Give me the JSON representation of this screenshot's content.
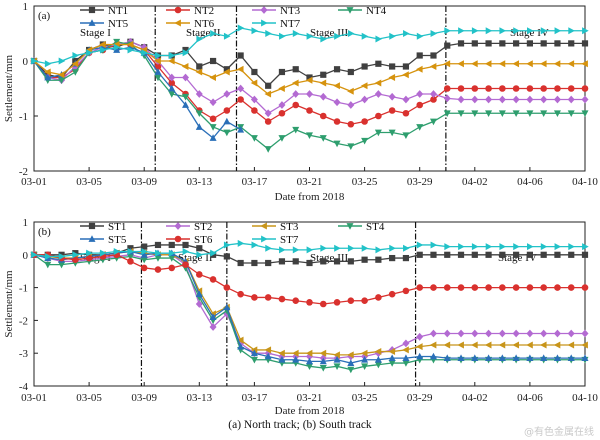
{
  "caption": "(a) North track; (b) South track",
  "watermark": "@有色金属在线",
  "colors": {
    "NT1": "#404040",
    "NT2": "#d9312e",
    "NT3": "#b36ad2",
    "NT4": "#2e9e6e",
    "NT5": "#2a6fb8",
    "NT6": "#d6930e",
    "NT7": "#22c2c8",
    "ST1": "#404040",
    "ST2": "#b36ad2",
    "ST3": "#c8951a",
    "ST4": "#2e9e6e",
    "ST5": "#2a6fb8",
    "ST6": "#d9312e",
    "ST7": "#22c2c8"
  },
  "markers": {
    "NT1": "square",
    "NT2": "circle",
    "NT3": "diamond",
    "NT4": "triangle-down",
    "NT5": "triangle-up",
    "NT6": "triangle-left",
    "NT7": "triangle-right",
    "ST1": "square",
    "ST2": "diamond",
    "ST3": "triangle-left",
    "ST4": "triangle-down",
    "ST5": "triangle-up",
    "ST6": "circle",
    "ST7": "triangle-right"
  },
  "chart_data": [
    {
      "type": "line",
      "panel": "(a)",
      "xlabel": "Date from 2018",
      "ylabel": "Settlement/mm",
      "x_tick_labels": [
        "03-01",
        "03-05",
        "03-09",
        "03-13",
        "03-17",
        "03-21",
        "03-25",
        "03-29",
        "04-02",
        "04-06",
        "04-10"
      ],
      "x_range_days": [
        0,
        40
      ],
      "ylim": [
        -2,
        1
      ],
      "y_ticks": [
        1,
        0,
        -1,
        -2
      ],
      "stage_dividers_day": [
        8.8,
        14.7,
        29.9
      ],
      "stages": [
        "Stage I",
        "Stage II",
        "Stage III",
        "Stage IV"
      ],
      "legend": [
        "NT1",
        "NT2",
        "NT3",
        "NT4",
        "NT5",
        "NT6",
        "NT7"
      ],
      "x_day": [
        0,
        1,
        2,
        3,
        4,
        5,
        6,
        7,
        8,
        9,
        10,
        11,
        12,
        13,
        14,
        15,
        16,
        17,
        18,
        19,
        20,
        21,
        22,
        23,
        24,
        25,
        26,
        27,
        28,
        29,
        30,
        31,
        32,
        33,
        34,
        35,
        36,
        37,
        38,
        39,
        40
      ],
      "series": [
        {
          "name": "NT1",
          "values": [
            0,
            -0.25,
            -0.3,
            0,
            0.2,
            0.3,
            0.25,
            0.35,
            0.25,
            0.1,
            0.1,
            0.2,
            -0.1,
            0,
            -0.15,
            0.1,
            -0.2,
            -0.45,
            -0.2,
            -0.15,
            -0.3,
            -0.25,
            -0.15,
            -0.2,
            -0.1,
            -0.05,
            -0.1,
            -0.1,
            0.1,
            0.1,
            0.28,
            0.32,
            0.32,
            0.32,
            0.32,
            0.32,
            0.32,
            0.32,
            0.32,
            0.32,
            0.32
          ]
        },
        {
          "name": "NT2",
          "values": [
            0,
            -0.3,
            -0.3,
            -0.15,
            0.15,
            0.2,
            0.3,
            0.3,
            0.2,
            -0.1,
            -0.4,
            -0.6,
            -0.9,
            -1.05,
            -0.9,
            -0.7,
            -0.9,
            -1.1,
            -0.95,
            -0.8,
            -0.9,
            -1.0,
            -1.1,
            -1.15,
            -1.1,
            -1.0,
            -0.9,
            -0.95,
            -0.8,
            -0.7,
            -0.5,
            -0.5,
            -0.5,
            -0.5,
            -0.5,
            -0.5,
            -0.5,
            -0.5,
            -0.5,
            -0.5,
            -0.5
          ]
        },
        {
          "name": "NT3",
          "values": [
            0,
            -0.3,
            -0.35,
            -0.1,
            0.15,
            0.25,
            0.3,
            0.35,
            0.25,
            0.0,
            -0.3,
            -0.3,
            -0.6,
            -0.75,
            -0.6,
            -0.5,
            -0.7,
            -0.95,
            -0.8,
            -0.6,
            -0.6,
            -0.65,
            -0.75,
            -0.8,
            -0.7,
            -0.6,
            -0.65,
            -0.7,
            -0.6,
            -0.6,
            -0.68,
            -0.7,
            -0.7,
            -0.7,
            -0.7,
            -0.7,
            -0.7,
            -0.7,
            -0.7,
            -0.7,
            -0.7
          ]
        },
        {
          "name": "NT4",
          "values": [
            0,
            -0.35,
            -0.35,
            -0.2,
            0.15,
            0.2,
            0.35,
            0.3,
            0.1,
            -0.3,
            -0.6,
            -0.65,
            -0.95,
            -1.2,
            -1.3,
            -1.2,
            -1.4,
            -1.6,
            -1.4,
            -1.25,
            -1.35,
            -1.4,
            -1.5,
            -1.55,
            -1.45,
            -1.3,
            -1.3,
            -1.35,
            -1.2,
            -1.1,
            -0.95,
            -0.95,
            -0.95,
            -0.95,
            -0.95,
            -0.95,
            -0.95,
            -0.95,
            -0.95,
            -0.95,
            -0.95
          ]
        },
        {
          "name": "NT5",
          "values": [
            0,
            -0.3,
            -0.25,
            -0.05,
            0.2,
            0.25,
            0.2,
            0.25,
            0.15,
            -0.2,
            -0.5,
            -0.8,
            -1.2,
            -1.4,
            -1.1,
            -1.25
          ]
        },
        {
          "name": "NT6",
          "values": [
            0,
            -0.2,
            -0.25,
            -0.05,
            0.2,
            0.3,
            0.3,
            0.3,
            0.2,
            0.0,
            0.0,
            -0.1,
            -0.2,
            -0.3,
            -0.2,
            -0.15,
            -0.4,
            -0.6,
            -0.5,
            -0.4,
            -0.35,
            -0.4,
            -0.45,
            -0.55,
            -0.45,
            -0.4,
            -0.3,
            -0.25,
            -0.15,
            -0.1,
            -0.05,
            -0.05,
            -0.05,
            -0.05,
            -0.05,
            -0.05,
            -0.05,
            -0.05,
            -0.05,
            -0.05,
            -0.05
          ]
        },
        {
          "name": "NT7",
          "values": [
            0,
            -0.05,
            0,
            0.1,
            0.15,
            0.2,
            0.25,
            0.2,
            0.15,
            0.1,
            0.1,
            0.15,
            0.4,
            0.5,
            0.45,
            0.6,
            0.55,
            0.5,
            0.45,
            0.5,
            0.45,
            0.4,
            0.45,
            0.5,
            0.45,
            0.4,
            0.45,
            0.5,
            0.45,
            0.5,
            0.55,
            0.55,
            0.55,
            0.55,
            0.55,
            0.55,
            0.55,
            0.55,
            0.55,
            0.55,
            0.55
          ]
        }
      ]
    },
    {
      "type": "line",
      "panel": "(b)",
      "xlabel": "Date from 2018",
      "ylabel": "Settlement/mm",
      "x_tick_labels": [
        "03-01",
        "03-05",
        "03-09",
        "03-13",
        "03-17",
        "03-21",
        "03-25",
        "03-29",
        "04-02",
        "04-06",
        "04-10"
      ],
      "x_range_days": [
        0,
        40
      ],
      "ylim": [
        -4,
        1
      ],
      "y_ticks": [
        1,
        0,
        -1,
        -2,
        -3,
        -4
      ],
      "stage_dividers_day": [
        7.8,
        14.0,
        27.7
      ],
      "stages": [
        "Stage I",
        "Stage II",
        "Stage III",
        "Stage IV"
      ],
      "legend": [
        "ST1",
        "ST2",
        "ST3",
        "ST4",
        "ST5",
        "ST6",
        "ST7"
      ],
      "x_day": [
        0,
        1,
        2,
        3,
        4,
        5,
        6,
        7,
        8,
        9,
        10,
        11,
        12,
        13,
        14,
        15,
        16,
        17,
        18,
        19,
        20,
        21,
        22,
        23,
        24,
        25,
        26,
        27,
        28,
        29,
        30,
        31,
        32,
        33,
        34,
        35,
        36,
        37,
        38,
        39,
        40
      ],
      "series": [
        {
          "name": "ST1",
          "values": [
            0,
            0,
            0,
            0.05,
            0,
            0,
            0.05,
            0.2,
            0.25,
            0.3,
            0.3,
            0.3,
            0.2,
            0.0,
            -0.05,
            -0.25,
            -0.25,
            -0.25,
            -0.2,
            -0.2,
            -0.25,
            -0.2,
            -0.2,
            -0.2,
            -0.15,
            -0.15,
            -0.1,
            -0.1,
            0,
            0,
            0,
            0,
            0,
            0,
            0,
            0,
            0,
            0,
            0,
            0,
            0
          ]
        },
        {
          "name": "ST2",
          "values": [
            0,
            -0.1,
            -0.2,
            -0.2,
            -0.15,
            -0.1,
            -0.05,
            0,
            -0.1,
            0,
            0,
            -0.3,
            -1.5,
            -2.2,
            -1.8,
            -2.7,
            -3.0,
            -3.0,
            -3.1,
            -3.1,
            -3.1,
            -3.15,
            -3.15,
            -3.1,
            -3.1,
            -3.0,
            -2.9,
            -2.7,
            -2.5,
            -2.4,
            -2.4,
            -2.4,
            -2.4,
            -2.4,
            -2.4,
            -2.4,
            -2.4,
            -2.4,
            -2.4,
            -2.4,
            -2.4
          ]
        },
        {
          "name": "ST3",
          "values": [
            0,
            -0.05,
            -0.1,
            -0.1,
            -0.05,
            0,
            0.05,
            0.1,
            0.05,
            0,
            0,
            -0.2,
            -1.1,
            -1.8,
            -1.6,
            -2.6,
            -2.9,
            -2.9,
            -3.0,
            -3.0,
            -3.0,
            -3.0,
            -3.05,
            -3.05,
            -3.0,
            -2.95,
            -2.95,
            -2.9,
            -2.8,
            -2.75,
            -2.75,
            -2.75,
            -2.75,
            -2.75,
            -2.75,
            -2.75,
            -2.75,
            -2.75,
            -2.75,
            -2.75,
            -2.75
          ]
        },
        {
          "name": "ST4",
          "values": [
            0,
            -0.3,
            -0.3,
            -0.25,
            -0.2,
            -0.15,
            -0.1,
            -0.05,
            -0.15,
            -0.1,
            -0.1,
            -0.4,
            -1.3,
            -2.0,
            -1.7,
            -2.9,
            -3.2,
            -3.2,
            -3.3,
            -3.3,
            -3.4,
            -3.45,
            -3.4,
            -3.5,
            -3.4,
            -3.35,
            -3.3,
            -3.3,
            -3.2,
            -3.2,
            -3.2,
            -3.2,
            -3.2,
            -3.2,
            -3.2,
            -3.2,
            -3.2,
            -3.2,
            -3.2,
            -3.2,
            -3.2
          ]
        },
        {
          "name": "ST5",
          "values": [
            0,
            -0.1,
            -0.15,
            -0.1,
            -0.05,
            0,
            0.05,
            0.1,
            0.0,
            0.05,
            0.05,
            -0.2,
            -1.2,
            -1.9,
            -1.6,
            -2.8,
            -3.0,
            -3.1,
            -3.2,
            -3.2,
            -3.25,
            -3.25,
            -3.2,
            -3.3,
            -3.2,
            -3.2,
            -3.15,
            -3.15,
            -3.1,
            -3.1,
            -3.15,
            -3.15,
            -3.15,
            -3.15,
            -3.15,
            -3.15,
            -3.15,
            -3.15,
            -3.15,
            -3.15,
            -3.15
          ]
        },
        {
          "name": "ST6",
          "values": [
            0,
            0,
            -0.1,
            -0.15,
            -0.1,
            -0.05,
            0,
            -0.2,
            -0.4,
            -0.45,
            -0.4,
            -0.3,
            -0.6,
            -0.75,
            -1.0,
            -1.2,
            -1.3,
            -1.3,
            -1.35,
            -1.4,
            -1.45,
            -1.5,
            -1.45,
            -1.4,
            -1.4,
            -1.3,
            -1.2,
            -1.1,
            -1.0,
            -1.0,
            -1.0,
            -1.0,
            -1.0,
            -1.0,
            -1.0,
            -1.0,
            -1.0,
            -1.0,
            -1.0,
            -1.0,
            -1.0
          ]
        },
        {
          "name": "ST7",
          "values": [
            0,
            -0.05,
            -0.05,
            0,
            0.05,
            0.05,
            0.1,
            0.1,
            0.1,
            0.05,
            0.05,
            0.1,
            0.0,
            0.05,
            0.3,
            0.35,
            0.3,
            0.2,
            0.15,
            0.15,
            0.15,
            0.2,
            0.2,
            0.2,
            0.2,
            0.15,
            0.2,
            0.2,
            0.3,
            0.3,
            0.25,
            0.25,
            0.25,
            0.25,
            0.25,
            0.25,
            0.25,
            0.25,
            0.25,
            0.25,
            0.25
          ]
        }
      ]
    }
  ]
}
